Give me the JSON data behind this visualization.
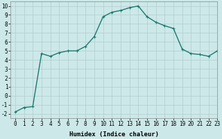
{
  "x": [
    0,
    1,
    2,
    3,
    4,
    5,
    6,
    7,
    8,
    9,
    10,
    11,
    12,
    13,
    14,
    15,
    16,
    17,
    18,
    19,
    20,
    21,
    22,
    23
  ],
  "y": [
    -1.8,
    -1.3,
    -1.2,
    4.7,
    4.4,
    4.8,
    5.0,
    5.0,
    5.5,
    6.6,
    8.8,
    9.3,
    9.5,
    9.8,
    10.0,
    8.8,
    8.2,
    7.8,
    7.5,
    5.2,
    4.7,
    4.6,
    4.4,
    5.0
  ],
  "line_color": "#1a7a6e",
  "marker": "+",
  "marker_size": 3,
  "xlabel": "Humidex (Indice chaleur)",
  "xlim": [
    -0.5,
    23
  ],
  "ylim": [
    -2.5,
    10.5
  ],
  "yticks": [
    -2,
    -1,
    0,
    1,
    2,
    3,
    4,
    5,
    6,
    7,
    8,
    9,
    10
  ],
  "xticks": [
    0,
    1,
    2,
    3,
    4,
    5,
    6,
    7,
    8,
    9,
    10,
    11,
    12,
    13,
    14,
    15,
    16,
    17,
    18,
    19,
    20,
    21,
    22,
    23
  ],
  "bg_color": "#cce8e8",
  "grid_color": "#b0cccc",
  "xlabel_fontsize": 6.5,
  "tick_fontsize": 5.5,
  "line_width": 1.0,
  "marker_edge_width": 0.8
}
